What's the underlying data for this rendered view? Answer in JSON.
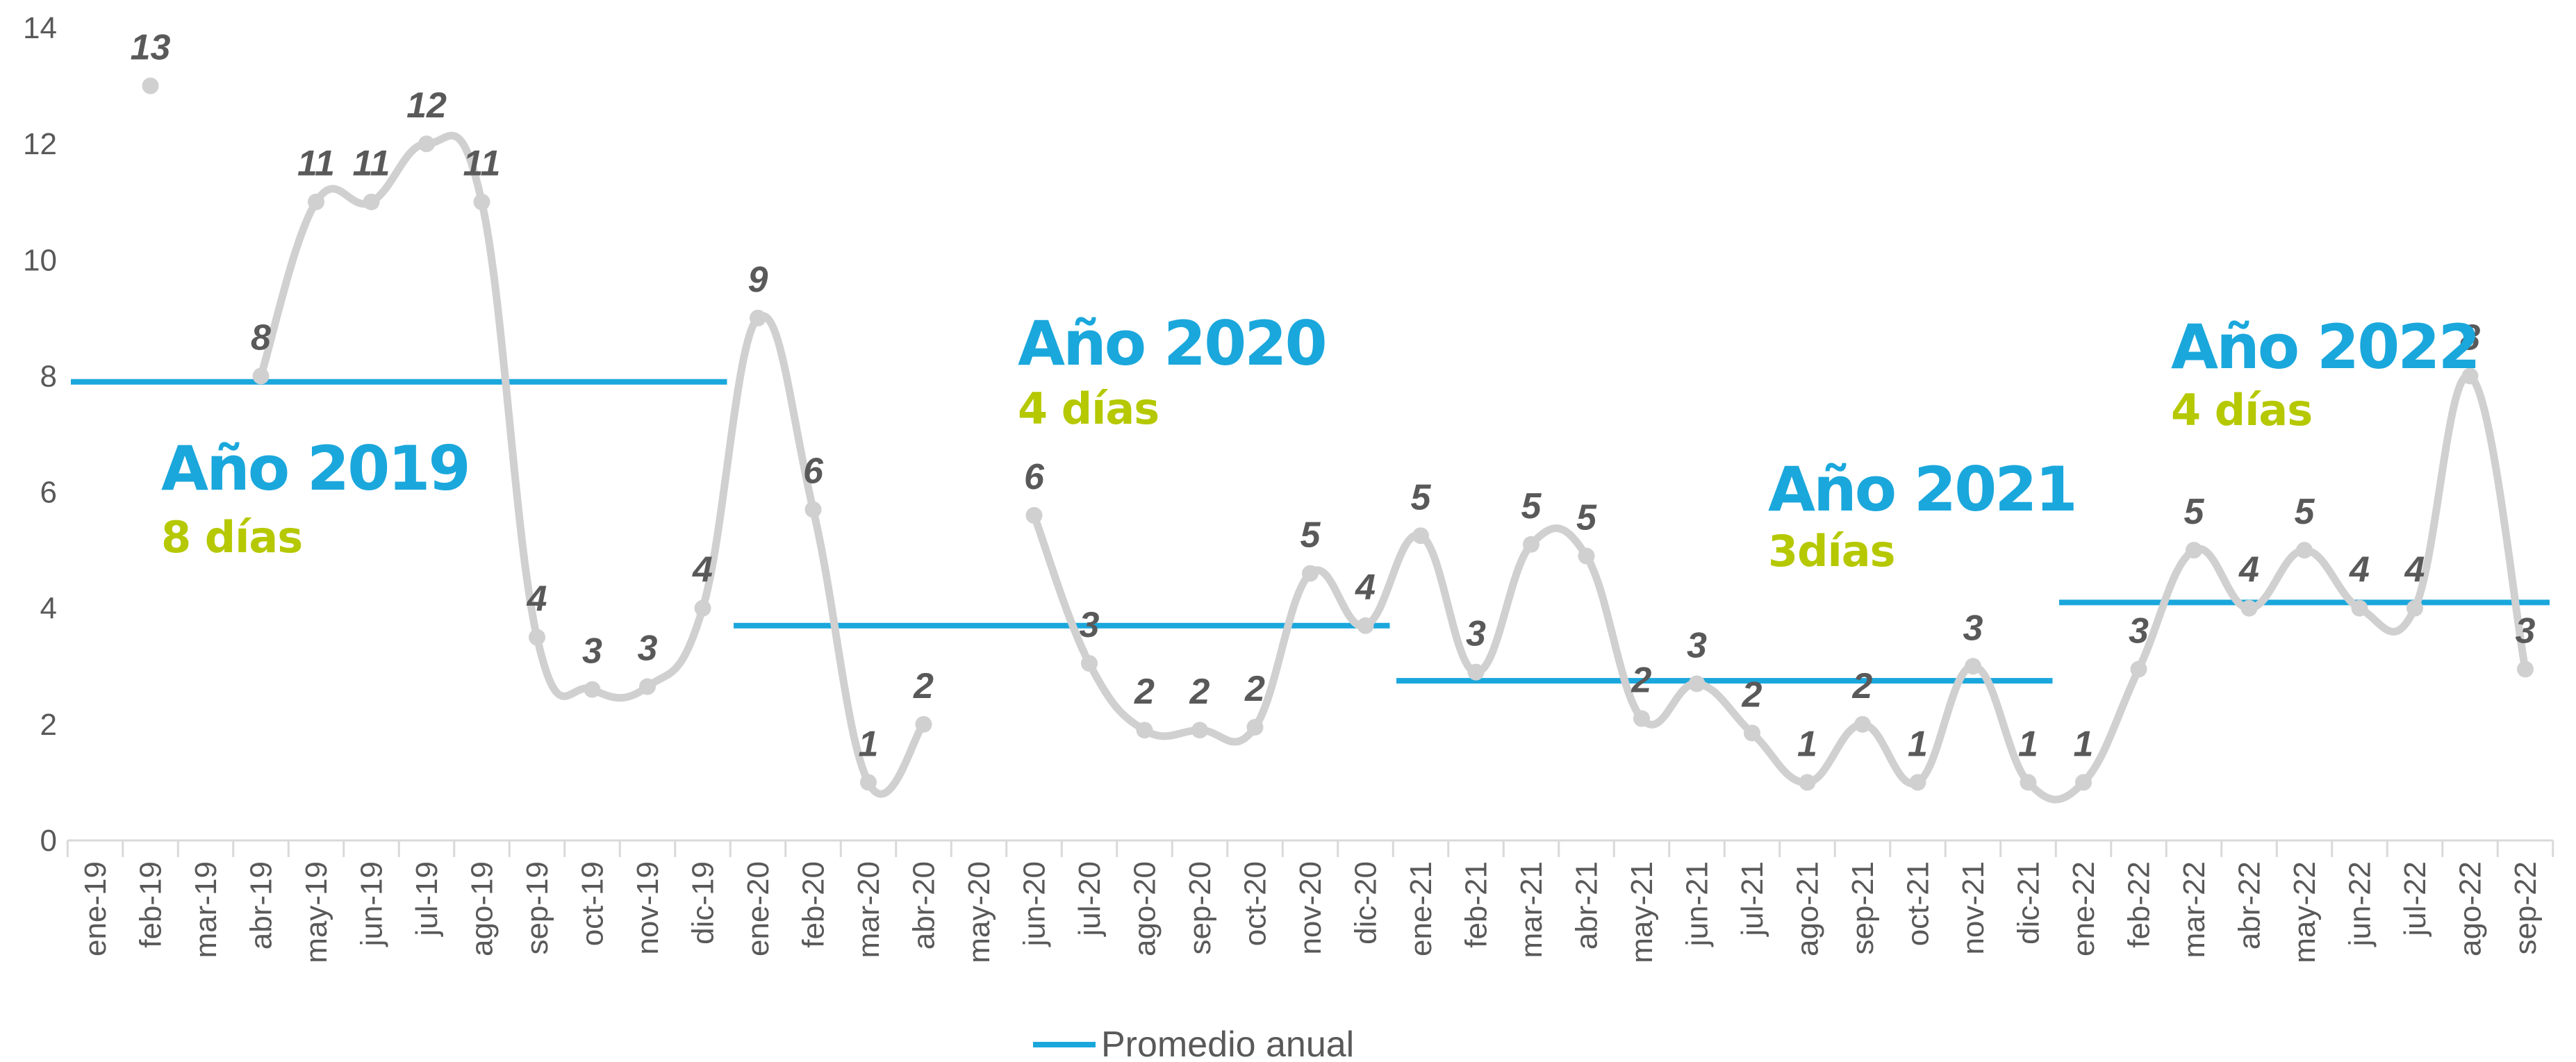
{
  "chart_data": {
    "type": "line",
    "categories": [
      "ene-19",
      "feb-19",
      "mar-19",
      "abr-19",
      "may-19",
      "jun-19",
      "jul-19",
      "ago-19",
      "sep-19",
      "oct-19",
      "nov-19",
      "dic-19",
      "ene-20",
      "feb-20",
      "mar-20",
      "abr-20",
      "may-20",
      "jun-20",
      "jul-20",
      "ago-20",
      "sep-20",
      "oct-20",
      "nov-20",
      "dic-20",
      "ene-21",
      "feb-21",
      "mar-21",
      "abr-21",
      "may-21",
      "jun-21",
      "jul-21",
      "ago-21",
      "sep-21",
      "oct-21",
      "nov-21",
      "dic-21",
      "ene-22",
      "feb-22",
      "mar-22",
      "abr-22",
      "may-22",
      "jun-22",
      "jul-22",
      "ago-22",
      "sep-22"
    ],
    "ylim": [
      0,
      14
    ],
    "yticks": [
      0,
      2,
      4,
      6,
      8,
      10,
      12,
      14
    ],
    "grid": false,
    "legend_position": "bottom",
    "series": [
      {
        "name": "",
        "color": "#d0d0d0",
        "values": [
          null,
          13,
          null,
          8,
          11,
          11,
          12,
          11,
          3.5,
          2.6,
          2.65,
          4,
          9,
          5.7,
          1,
          2,
          null,
          5.6,
          3.05,
          1.9,
          1.9,
          1.95,
          4.6,
          3.7,
          5.25,
          2.9,
          5.1,
          4.9,
          2.1,
          2.7,
          1.85,
          1,
          2,
          1,
          3,
          1,
          1,
          2.95,
          5,
          4,
          5,
          4,
          4,
          8,
          2.95
        ],
        "labels": [
          "",
          "13",
          "",
          "8",
          "11",
          "11",
          "12",
          "11",
          "4",
          "3",
          "3",
          "4",
          "9",
          "6",
          "1",
          "2",
          "",
          "6",
          "3",
          "2",
          "2",
          "2",
          "5",
          "4",
          "5",
          "3",
          "5",
          "5",
          "2",
          "3",
          "2",
          "1",
          "2",
          "1",
          "3",
          "1",
          "1",
          "3",
          "5",
          "4",
          "5",
          "4",
          "4",
          "8",
          "3"
        ]
      },
      {
        "name": "Promedio anual",
        "color": "#1aa7dc",
        "segments": [
          {
            "from": 0,
            "to": 11,
            "value": 7.9
          },
          {
            "from": 12,
            "to": 23,
            "value": 3.7
          },
          {
            "from": 24,
            "to": 35,
            "value": 2.75
          },
          {
            "from": 36,
            "to": 44,
            "value": 4.1
          }
        ]
      }
    ],
    "annotations": [
      {
        "title": "Año 2019",
        "subtitle": "8 días"
      },
      {
        "title": "Año 2020",
        "subtitle": "4 días"
      },
      {
        "title": "Año 2021",
        "subtitle": "3días"
      },
      {
        "title": "Año 2022",
        "subtitle": "4 días"
      }
    ]
  },
  "colors": {
    "title": "#1aa7dc",
    "subtitle": "#b5c800",
    "axis": "#d9d9d9",
    "text": "#595959"
  },
  "legend": {
    "label": "Promedio anual"
  }
}
